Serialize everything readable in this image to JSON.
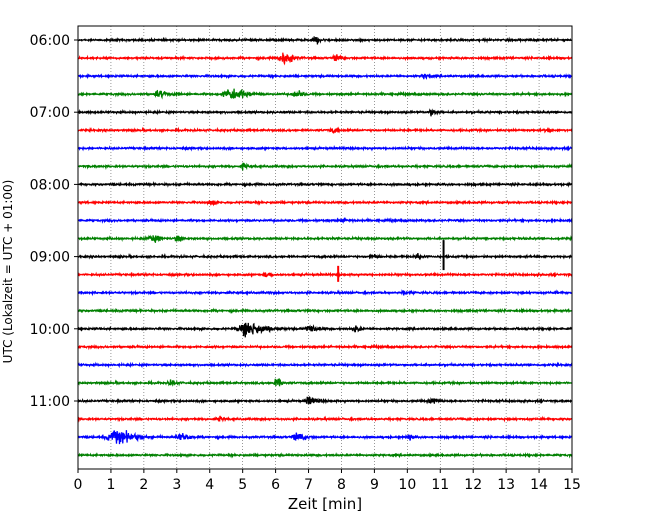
{
  "chart_data": {
    "type": "line",
    "title": "",
    "xlabel": "Zeit  [min]",
    "ylabel": "UTC (Lokalzeit = UTC + 01:00)",
    "xlim": [
      0,
      15
    ],
    "xticks": [
      0,
      1,
      2,
      3,
      4,
      5,
      6,
      7,
      8,
      9,
      10,
      11,
      12,
      13,
      14,
      15
    ],
    "xtick_labels": [
      "0",
      "1",
      "2",
      "3",
      "4",
      "5",
      "6",
      "7",
      "8",
      "9",
      "10",
      "11",
      "12",
      "13",
      "14",
      "15"
    ],
    "yticks": [
      {
        "label": "06:00",
        "trace_index": 0
      },
      {
        "label": "07:00",
        "trace_index": 4
      },
      {
        "label": "08:00",
        "trace_index": 8
      },
      {
        "label": "09:00",
        "trace_index": 12
      },
      {
        "label": "10:00",
        "trace_index": 16
      },
      {
        "label": "11:00",
        "trace_index": 20
      }
    ],
    "grid": "vertical-dotted",
    "colors": [
      "#000000",
      "#ff0000",
      "#0000ff",
      "#008000"
    ],
    "traces": [
      {
        "start": "06:00",
        "color": "#000000",
        "events": [
          [
            7.2,
            0.35,
            0.5
          ]
        ]
      },
      {
        "start": "06:15",
        "color": "#ff0000",
        "events": [
          [
            6.2,
            0.6,
            0.9
          ],
          [
            7.8,
            0.4,
            0.5
          ]
        ]
      },
      {
        "start": "06:30",
        "color": "#0000ff",
        "events": [
          [
            10.5,
            0.3,
            0.4
          ]
        ]
      },
      {
        "start": "06:45",
        "color": "#008000",
        "events": [
          [
            2.4,
            0.5,
            0.5
          ],
          [
            4.6,
            1.0,
            0.9
          ],
          [
            6.6,
            0.4,
            0.6
          ],
          [
            3.0,
            0.2,
            0.4
          ]
        ]
      },
      {
        "start": "07:00",
        "color": "#000000",
        "events": [
          [
            10.7,
            0.35,
            0.45
          ]
        ]
      },
      {
        "start": "07:15",
        "color": "#ff0000",
        "events": [
          [
            7.7,
            0.3,
            0.4
          ],
          [
            14.2,
            0.25,
            0.35
          ]
        ]
      },
      {
        "start": "07:30",
        "color": "#0000ff",
        "events": []
      },
      {
        "start": "07:45",
        "color": "#008000",
        "events": [
          [
            5.0,
            0.25,
            0.4
          ]
        ]
      },
      {
        "start": "08:00",
        "color": "#000000",
        "events": []
      },
      {
        "start": "08:15",
        "color": "#ff0000",
        "events": [
          [
            4.0,
            0.3,
            0.4
          ]
        ]
      },
      {
        "start": "08:30",
        "color": "#0000ff",
        "events": [
          [
            8.0,
            0.3,
            0.35
          ]
        ]
      },
      {
        "start": "08:45",
        "color": "#008000",
        "events": [
          [
            2.2,
            0.5,
            0.6
          ],
          [
            3.0,
            0.3,
            0.5
          ]
        ]
      },
      {
        "start": "09:00",
        "color": "#000000",
        "events": [
          [
            8.9,
            0.3,
            0.35
          ],
          [
            10.3,
            0.3,
            0.4
          ]
        ],
        "spike": [
          11.1,
          3.0
        ]
      },
      {
        "start": "09:15",
        "color": "#ff0000",
        "events": [
          [
            5.7,
            0.3,
            0.35
          ]
        ],
        "spike": [
          7.9,
          1.6
        ]
      },
      {
        "start": "09:30",
        "color": "#0000ff",
        "events": [
          [
            9.9,
            0.3,
            0.35
          ]
        ]
      },
      {
        "start": "09:45",
        "color": "#008000",
        "events": []
      },
      {
        "start": "10:00",
        "color": "#000000",
        "events": [
          [
            5.1,
            1.2,
            1.0
          ],
          [
            7.0,
            0.5,
            0.6
          ],
          [
            8.4,
            0.3,
            0.5
          ]
        ]
      },
      {
        "start": "10:15",
        "color": "#ff0000",
        "events": []
      },
      {
        "start": "10:30",
        "color": "#0000ff",
        "events": []
      },
      {
        "start": "10:45",
        "color": "#008000",
        "events": [
          [
            2.8,
            0.3,
            0.4
          ],
          [
            6.0,
            0.4,
            0.6
          ]
        ]
      },
      {
        "start": "11:00",
        "color": "#000000",
        "events": [
          [
            7.0,
            0.5,
            0.6
          ],
          [
            10.7,
            0.4,
            0.5
          ]
        ]
      },
      {
        "start": "11:15",
        "color": "#ff0000",
        "events": [
          [
            4.3,
            0.2,
            0.4
          ]
        ]
      },
      {
        "start": "11:30",
        "color": "#0000ff",
        "events": [
          [
            1.1,
            1.2,
            1.0
          ],
          [
            3.1,
            0.6,
            0.6
          ],
          [
            6.6,
            0.6,
            0.6
          ],
          [
            10.0,
            0.3,
            0.4
          ]
        ]
      },
      {
        "start": "11:45",
        "color": "#008000",
        "events": []
      }
    ]
  }
}
